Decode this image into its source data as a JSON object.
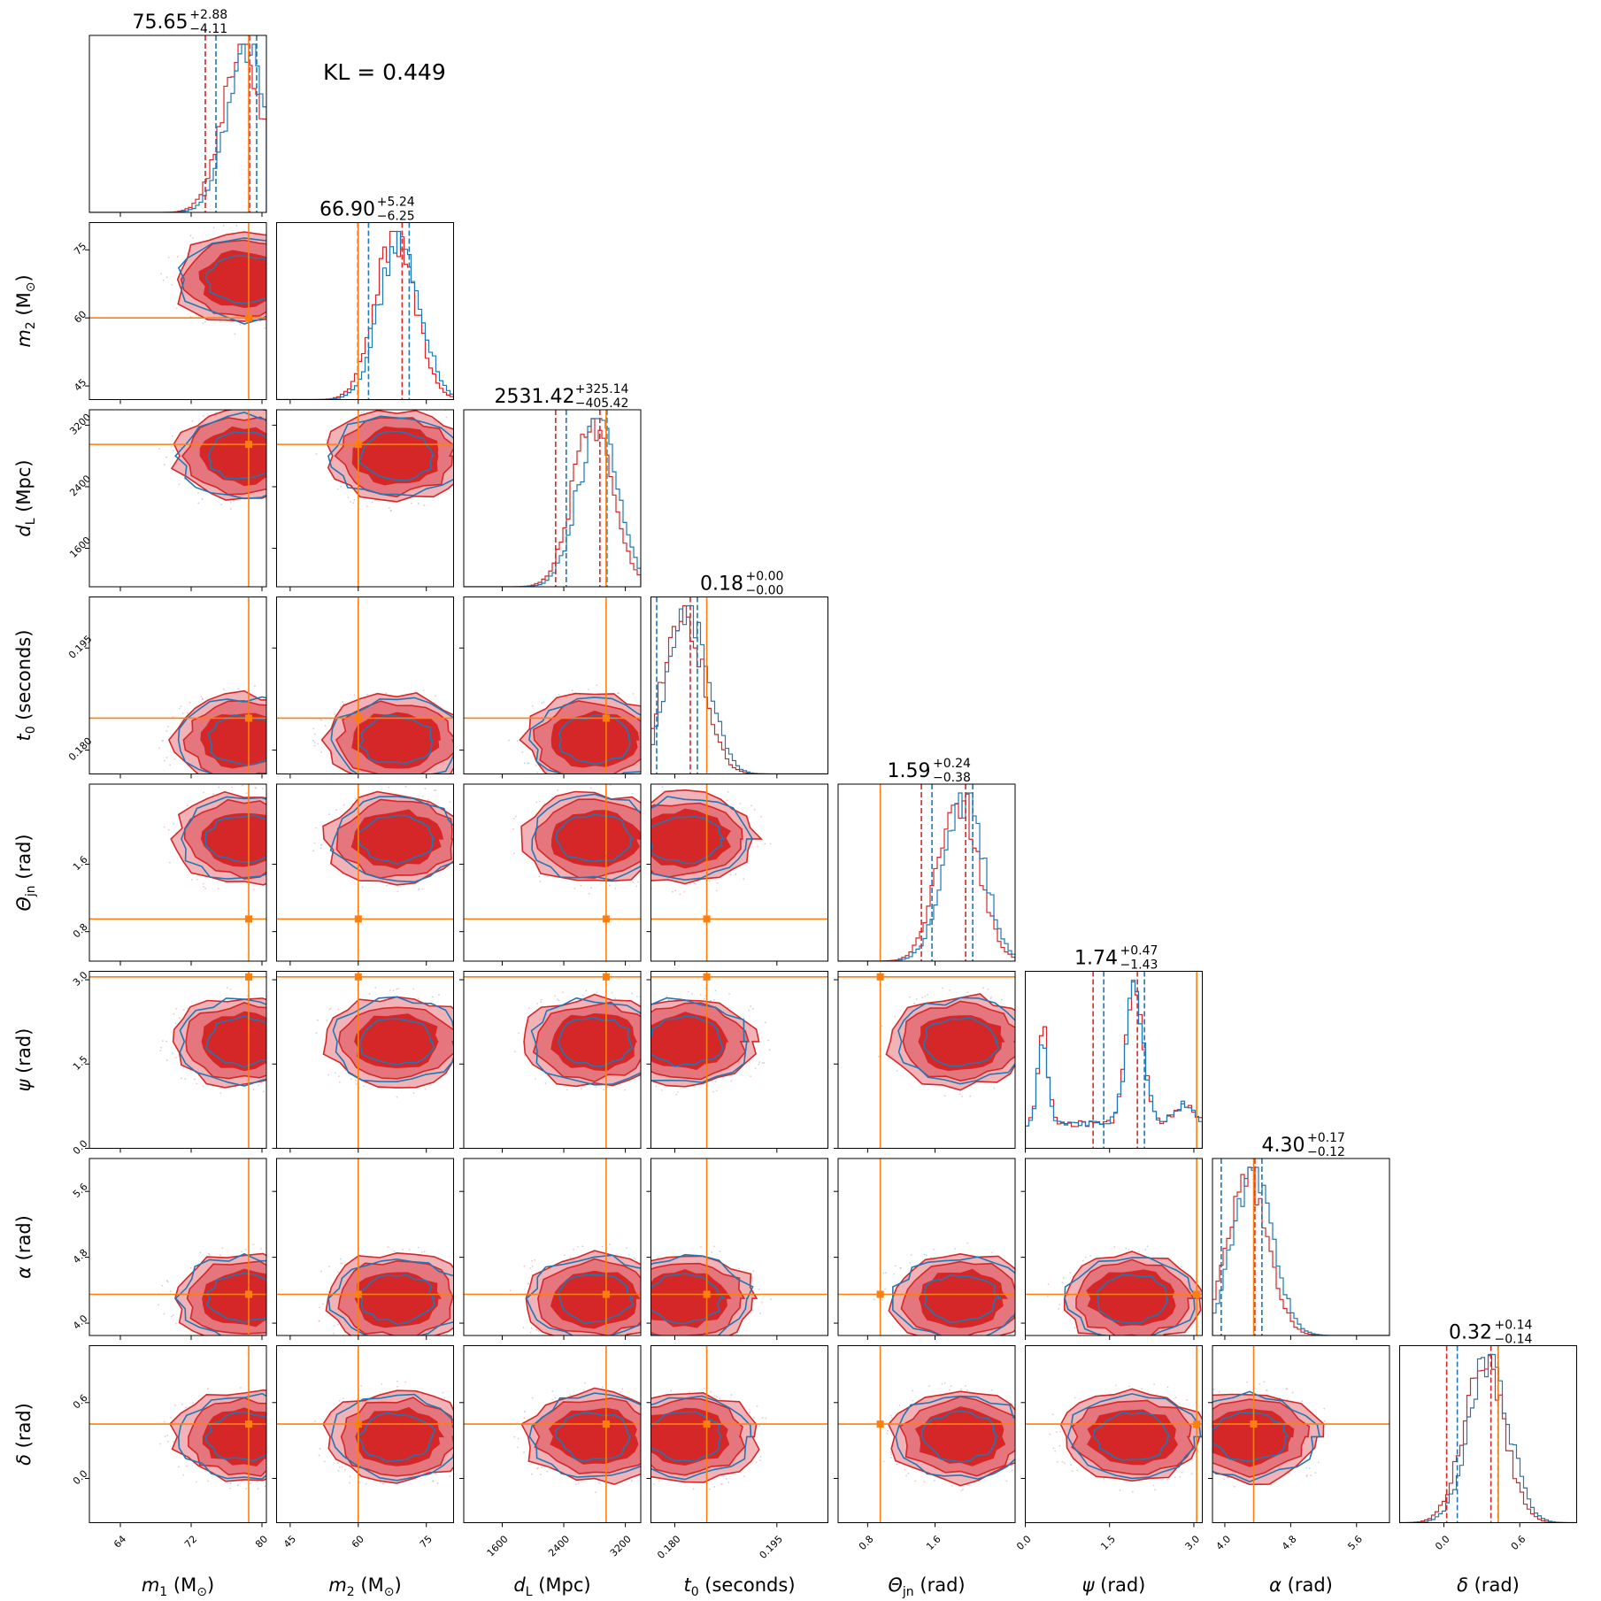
{
  "chart_data": {
    "type": "corner",
    "annotation": "KL = 0.449",
    "colors": {
      "posterior_a": "#d62728",
      "posterior_b": "#1f77b4",
      "truth": "#ff7f0e"
    },
    "parameters": [
      {
        "key": "m1",
        "label_main": "m",
        "label_sub": "1",
        "label_unit": "(M",
        "label_unit_sub": "⊙",
        "label_unit_end": ")",
        "range": [
          60.5,
          80.5
        ],
        "ticks": [
          "64",
          "72",
          "80"
        ],
        "tick_values": [
          64,
          72,
          80
        ],
        "truth": 78.5,
        "median": "75.65",
        "plus": "+2.88",
        "minus": "−4.11",
        "peak": 78
      },
      {
        "key": "m2",
        "label_main": "m",
        "label_sub": "2",
        "label_unit": "(M",
        "label_unit_sub": "⊙",
        "label_unit_end": ")",
        "range": [
          42,
          81
        ],
        "ticks": [
          "45",
          "60",
          "75"
        ],
        "tick_values": [
          45,
          60,
          75
        ],
        "truth": 60,
        "median": "66.90",
        "plus": "+5.24",
        "minus": "−6.25",
        "peak": 68.5
      },
      {
        "key": "dL",
        "label_main": "d",
        "label_sub": "L",
        "label_unit": "(Mpc)",
        "label_unit_sub": "",
        "label_unit_end": "",
        "range": [
          1100,
          3400
        ],
        "ticks": [
          "1600",
          "2400",
          "3200"
        ],
        "tick_values": [
          1600,
          2400,
          3200
        ],
        "truth": 2950,
        "median": "2531.42",
        "plus": "+325.14",
        "minus": "−405.42",
        "peak": 2800
      },
      {
        "key": "t0",
        "label_main": "t",
        "label_sub": "0",
        "label_unit": "(seconds)",
        "label_unit_sub": "",
        "label_unit_end": "",
        "range": [
          0.1765,
          0.2025
        ],
        "ticks": [
          "0.180",
          "0.195"
        ],
        "tick_values": [
          0.18,
          0.195
        ],
        "truth": 0.1847,
        "median": "0.18",
        "plus": "+0.00",
        "minus": "−0.00",
        "peak": 0.1815
      },
      {
        "key": "theta_jn",
        "label_main": "Θ",
        "label_sub": "jn",
        "label_unit": "(rad)",
        "label_unit_sub": "",
        "label_unit_end": "",
        "range": [
          0.45,
          2.55
        ],
        "ticks": [
          "0.8",
          "1.6"
        ],
        "tick_values": [
          0.8,
          1.6
        ],
        "truth": 0.95,
        "median": "1.59",
        "plus": "+0.24",
        "minus": "−0.38",
        "peak": 1.9
      },
      {
        "key": "psi",
        "label_main": "ψ",
        "label_sub": "",
        "label_unit": "(rad)",
        "label_unit_sub": "",
        "label_unit_end": "",
        "range": [
          0.0,
          3.15
        ],
        "ticks": [
          "0.0",
          "1.5",
          "3.0"
        ],
        "tick_values": [
          0.0,
          1.5,
          3.0
        ],
        "truth": 3.05,
        "median": "1.74",
        "plus": "+0.47",
        "minus": "−1.43",
        "peak": 1.9
      },
      {
        "key": "alpha",
        "label_main": "α",
        "label_sub": "",
        "label_unit": "(rad)",
        "label_unit_sub": "",
        "label_unit_end": "",
        "range": [
          3.85,
          6.0
        ],
        "ticks": [
          "4.0",
          "4.8",
          "5.6"
        ],
        "tick_values": [
          4.0,
          4.8,
          5.6
        ],
        "truth": 4.35,
        "median": "4.30",
        "plus": "+0.17",
        "minus": "−0.12",
        "peak": 4.3
      },
      {
        "key": "delta",
        "label_main": "δ",
        "label_sub": "",
        "label_unit": "(rad)",
        "label_unit_sub": "",
        "label_unit_end": "",
        "range": [
          -0.35,
          1.05
        ],
        "ticks": [
          "0.0",
          "0.6"
        ],
        "tick_values": [
          0.0,
          0.6
        ],
        "truth": 0.43,
        "median": "0.32",
        "plus": "+0.14",
        "minus": "−0.14",
        "peak": 0.33
      }
    ]
  }
}
